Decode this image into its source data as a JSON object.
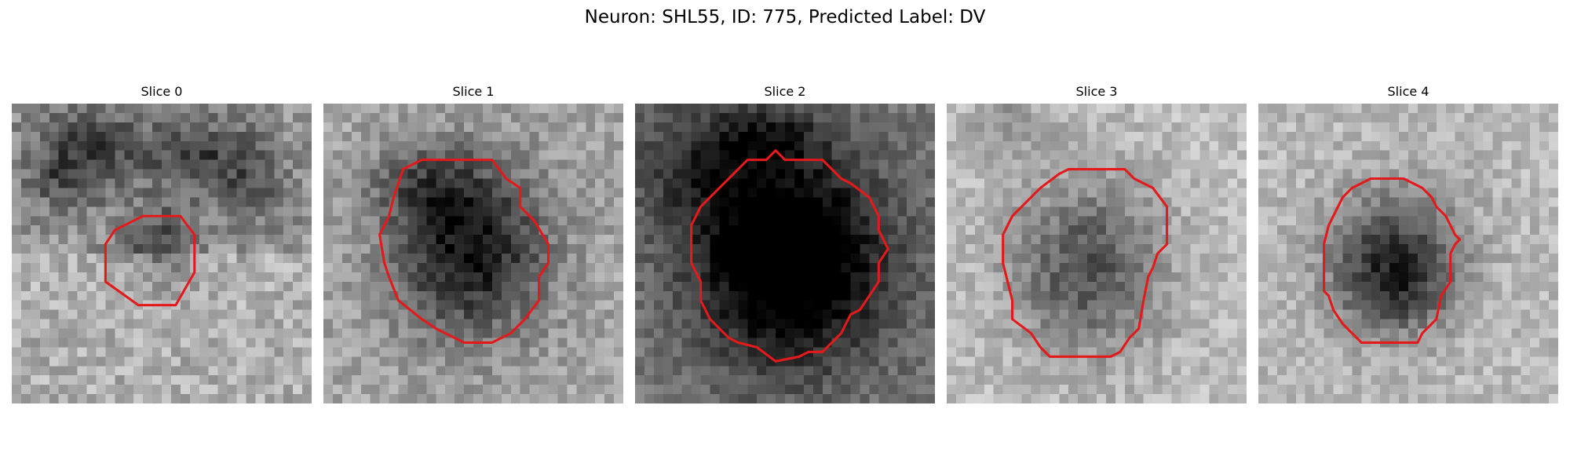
{
  "figure": {
    "title": "Neuron: SHL55, ID: 775, Predicted Label: DV"
  },
  "contour_color": "#e31a1c",
  "panels": [
    {
      "title": "Slice 0"
    },
    {
      "title": "Slice 1"
    },
    {
      "title": "Slice 2"
    },
    {
      "title": "Slice 3"
    },
    {
      "title": "Slice 4"
    }
  ]
}
